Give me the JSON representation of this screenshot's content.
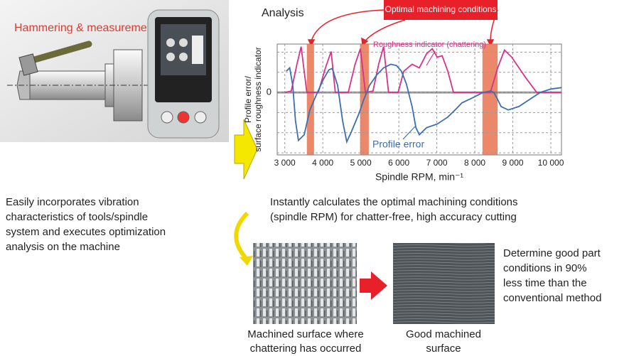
{
  "left_panel": {
    "title": "Hammering & measurement/analysis"
  },
  "chart_data": {
    "type": "line",
    "title": "Analysis",
    "annotation": "Optimal machining conditions",
    "xlabel": "Spindle RPM, min⁻¹",
    "ylabel": [
      "Profile error/",
      "surface roughness indicator"
    ],
    "xlim": [
      2800,
      10280
    ],
    "xticks": [
      {
        "value": 3000,
        "label": "3 000"
      },
      {
        "value": 4000,
        "label": "4 000"
      },
      {
        "value": 5000,
        "label": "5 000"
      },
      {
        "value": 6000,
        "label": "6 000"
      },
      {
        "value": 7000,
        "label": "7 000"
      },
      {
        "value": 8000,
        "label": "8 000"
      },
      {
        "value": 9000,
        "label": "9 000"
      },
      {
        "value": 10000,
        "label": "10 000"
      }
    ],
    "ylim": [
      -3.1,
      2.4
    ],
    "yticks": [
      0
    ],
    "ygrid": [
      -3,
      -2,
      -1,
      0,
      1,
      2
    ],
    "grid": true,
    "highlight_bands": [
      [
        3580,
        3770
      ],
      [
        4980,
        5210
      ],
      [
        8200,
        8600
      ]
    ],
    "band_color": "#e8734f",
    "series": [
      {
        "name": "Roughness indicator (chattering)",
        "color": "#d6338a",
        "x": [
          3000,
          3170,
          3320,
          3430,
          3580,
          3880,
          4070,
          4220,
          4330,
          4670,
          4850,
          4990,
          5120,
          5320,
          5470,
          5600,
          5730,
          5980,
          6130,
          6350,
          6540,
          6730,
          6880,
          7010,
          7140,
          7290,
          7440,
          8410,
          8600,
          8780,
          8970,
          9350,
          9630,
          10280
        ],
        "values": [
          0,
          0.07,
          1.4,
          2.27,
          0,
          0,
          1.22,
          2.03,
          0,
          0,
          1.4,
          2.17,
          0,
          0.07,
          1.4,
          2.27,
          0,
          0,
          1.05,
          1.4,
          1.22,
          1.92,
          2.17,
          1.75,
          1.82,
          1.05,
          0,
          0,
          1.22,
          2.1,
          1.75,
          0.7,
          0,
          0
        ]
      },
      {
        "name": "Profile error",
        "color": "#3b6fb0",
        "x": [
          3040,
          3130,
          3210,
          3280,
          3360,
          3510,
          3660,
          3820,
          4010,
          4160,
          4250,
          4390,
          4520,
          4630,
          4760,
          4950,
          5080,
          5230,
          5420,
          5600,
          5790,
          5940,
          6070,
          6200,
          6350,
          6450,
          6540,
          6730,
          7010,
          7290,
          7480,
          7660,
          7850,
          8040,
          8220,
          8410,
          8500,
          8600,
          8690,
          8880,
          9160,
          9440,
          9720,
          10000,
          10280
        ],
        "values": [
          1.05,
          1.22,
          0.35,
          -1.4,
          -2.38,
          -2.1,
          -0.87,
          -0.17,
          0.63,
          1.12,
          1.19,
          0.35,
          -1.4,
          -2.45,
          -1.92,
          -1.05,
          -0.35,
          0.35,
          0.87,
          1.22,
          1.4,
          1.33,
          1.05,
          0.42,
          -0.7,
          -1.75,
          -2.1,
          -1.75,
          -1.57,
          -1.22,
          -0.87,
          -0.52,
          -0.35,
          -0.17,
          0,
          0.07,
          0,
          -0.35,
          -0.7,
          -0.87,
          -0.7,
          -0.35,
          0,
          0.17,
          0.24
        ]
      }
    ]
  },
  "descriptions": {
    "left": [
      "Easily incorporates vibration",
      "characteristics of tools/spindle",
      "system and executes optimization",
      "analysis on the machine"
    ],
    "center": [
      "Instantly calculates the optimal machining conditions",
      "(spindle RPM) for chatter-free, high accuracy cutting"
    ],
    "right": [
      "Determine good part",
      "conditions in 90%",
      "less time than the",
      "conventional method"
    ]
  },
  "captions": [
    [
      "Machined surface where",
      "chattering has occurred"
    ],
    [
      "Good machined",
      "surface"
    ]
  ]
}
